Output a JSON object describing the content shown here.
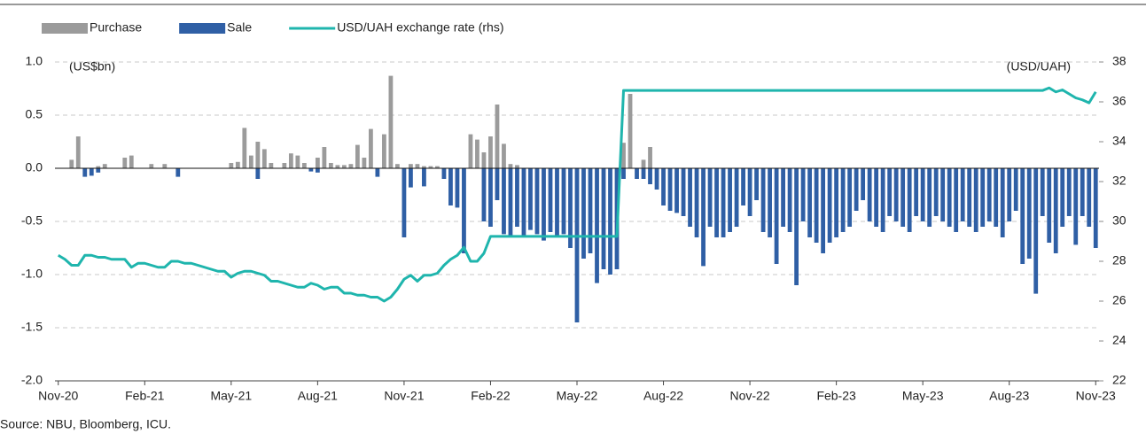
{
  "chart_data": {
    "type": "bar",
    "source": "Source: NBU, Bloomberg, ICU.",
    "y_label": "(US$bn)",
    "y2_label": "(USD/UAH)",
    "categories": [
      "Nov-20",
      null,
      null,
      null,
      null,
      null,
      null,
      null,
      null,
      null,
      null,
      null,
      null,
      "Feb-21",
      null,
      null,
      null,
      null,
      null,
      null,
      null,
      null,
      null,
      null,
      null,
      null,
      "May-21",
      null,
      null,
      null,
      null,
      null,
      null,
      null,
      null,
      null,
      null,
      null,
      null,
      "Aug-21",
      null,
      null,
      null,
      null,
      null,
      null,
      null,
      null,
      null,
      null,
      null,
      null,
      "Nov-21",
      null,
      null,
      null,
      null,
      null,
      null,
      null,
      null,
      null,
      null,
      null,
      null,
      "Feb-22",
      null,
      null,
      null,
      null,
      null,
      null,
      null,
      null,
      null,
      null,
      null,
      null,
      "May-22",
      null,
      null,
      null,
      null,
      null,
      null,
      null,
      null,
      null,
      null,
      null,
      null,
      "Aug-22",
      null,
      null,
      null,
      null,
      null,
      null,
      null,
      null,
      null,
      null,
      null,
      null,
      "Nov-22",
      null,
      null,
      null,
      null,
      null,
      null,
      null,
      null,
      null,
      null,
      null,
      null,
      "Feb-23",
      null,
      null,
      null,
      null,
      null,
      null,
      null,
      null,
      null,
      null,
      null,
      null,
      "May-23",
      null,
      null,
      null,
      null,
      null,
      null,
      null,
      null,
      null,
      null,
      null,
      null,
      "Aug-23",
      null,
      null,
      null,
      null,
      null,
      null,
      null,
      null,
      null,
      null,
      null,
      null,
      "Nov-23"
    ],
    "series": [
      {
        "name": "Purchase",
        "type": "bar",
        "color": "#9b9b9b",
        "values": [
          0,
          0,
          0.08,
          0.3,
          0,
          0,
          0.02,
          0.04,
          0,
          0,
          0.1,
          0.12,
          0,
          0,
          0.04,
          0,
          0.04,
          0,
          0,
          0,
          0,
          0,
          0,
          0,
          0,
          0,
          0.05,
          0.06,
          0.38,
          0.12,
          0.25,
          0.18,
          0.05,
          0,
          0.05,
          0.14,
          0.12,
          0.05,
          0,
          0.1,
          0.2,
          0.05,
          0.03,
          0.03,
          0.04,
          0.22,
          0.1,
          0.37,
          0,
          0.32,
          0.87,
          0.04,
          0,
          0.04,
          0.04,
          0.02,
          0.02,
          0.02,
          0,
          0,
          0,
          0,
          0.32,
          0.27,
          0.15,
          0.3,
          0.6,
          0.23,
          0.04,
          0.03,
          0,
          0,
          0,
          0,
          0,
          0,
          0,
          0,
          0,
          0,
          0,
          0,
          0,
          0,
          0,
          0.24,
          0.7,
          0,
          0.08,
          0.2,
          0,
          0,
          0,
          0,
          0,
          0,
          0,
          0,
          0,
          0,
          0,
          0,
          0,
          0,
          0,
          0,
          0,
          0,
          0,
          0,
          0,
          0,
          0,
          0,
          0,
          0,
          0,
          0,
          0,
          0,
          0,
          0,
          0,
          0,
          0,
          0,
          0,
          0,
          0,
          0,
          0,
          0,
          0,
          0,
          0,
          0,
          0,
          0,
          0,
          0,
          0,
          0,
          0,
          0,
          0,
          0,
          0,
          0,
          0,
          0,
          0,
          0,
          0,
          0,
          0,
          0,
          0
        ]
      },
      {
        "name": "Sale",
        "type": "bar",
        "color": "#2f5fa5",
        "values": [
          0,
          0,
          0,
          0,
          -0.08,
          -0.07,
          -0.04,
          0,
          0,
          0,
          0,
          0,
          0,
          0,
          0,
          0,
          0,
          0,
          -0.08,
          0,
          0,
          0,
          0,
          0,
          0,
          0,
          0,
          0,
          0,
          0,
          -0.1,
          0,
          0,
          0,
          0,
          0,
          0,
          0,
          -0.03,
          -0.04,
          0,
          0,
          0,
          0,
          0,
          0,
          0,
          0,
          -0.08,
          0,
          0,
          0,
          -0.65,
          -0.18,
          0,
          -0.17,
          0,
          0,
          -0.1,
          -0.35,
          -0.37,
          -0.8,
          0,
          0,
          -0.5,
          -0.55,
          -0.3,
          -0.62,
          -0.65,
          -0.55,
          -0.65,
          -0.58,
          -0.62,
          -0.68,
          -0.6,
          -0.65,
          -0.62,
          -0.75,
          -1.45,
          -0.85,
          -0.8,
          -1.08,
          -0.95,
          -1.0,
          -0.95,
          -0.1,
          0,
          -0.1,
          -0.1,
          -0.15,
          -0.2,
          -0.35,
          -0.4,
          -0.42,
          -0.45,
          -0.55,
          -0.65,
          -0.92,
          -0.55,
          -0.65,
          -0.65,
          -0.6,
          -0.55,
          -0.35,
          -0.45,
          -0.3,
          -0.6,
          -0.65,
          -0.9,
          -0.55,
          -0.6,
          -1.1,
          -0.5,
          -0.65,
          -0.7,
          -0.8,
          -0.7,
          -0.65,
          -0.6,
          -0.55,
          -0.4,
          -0.3,
          -0.5,
          -0.55,
          -0.6,
          -0.45,
          -0.5,
          -0.55,
          -0.6,
          -0.45,
          -0.5,
          -0.55,
          -0.45,
          -0.5,
          -0.55,
          -0.6,
          -0.5,
          -0.55,
          -0.6,
          -0.55,
          -0.5,
          -0.55,
          -0.65,
          -0.5,
          -0.4,
          -0.9,
          -0.85,
          -1.18,
          -0.45,
          -0.7,
          -0.8,
          -0.55,
          -0.45,
          -0.72,
          -0.45,
          -0.55,
          -0.75
        ]
      },
      {
        "name": "USD/UAH exchange rate (rhs)",
        "type": "line",
        "axis": "y2",
        "color": "#1fb5ad",
        "values": [
          28.3,
          28.1,
          27.8,
          27.8,
          28.3,
          28.3,
          28.2,
          28.2,
          28.1,
          28.1,
          28.1,
          27.7,
          27.9,
          27.9,
          27.8,
          27.7,
          27.7,
          28.0,
          28.0,
          27.9,
          27.9,
          27.8,
          27.7,
          27.6,
          27.5,
          27.5,
          27.2,
          27.4,
          27.5,
          27.5,
          27.4,
          27.3,
          27.0,
          27.0,
          26.9,
          26.8,
          26.7,
          26.7,
          26.9,
          26.8,
          26.6,
          26.7,
          26.7,
          26.4,
          26.4,
          26.3,
          26.3,
          26.2,
          26.2,
          26.0,
          26.2,
          26.6,
          27.1,
          27.3,
          27.0,
          27.3,
          27.3,
          27.4,
          27.8,
          28.1,
          28.3,
          28.7,
          28.0,
          28.0,
          28.4,
          29.25,
          29.25,
          29.25,
          29.25,
          29.25,
          29.25,
          29.25,
          29.25,
          29.25,
          29.25,
          29.25,
          29.25,
          29.25,
          29.25,
          29.25,
          29.25,
          29.25,
          29.25,
          29.25,
          29.25,
          36.57,
          36.57,
          36.57,
          36.57,
          36.57,
          36.57,
          36.57,
          36.57,
          36.57,
          36.57,
          36.57,
          36.57,
          36.57,
          36.57,
          36.57,
          36.57,
          36.57,
          36.57,
          36.57,
          36.57,
          36.57,
          36.57,
          36.57,
          36.57,
          36.57,
          36.57,
          36.57,
          36.57,
          36.57,
          36.57,
          36.57,
          36.57,
          36.57,
          36.57,
          36.57,
          36.57,
          36.57,
          36.57,
          36.57,
          36.57,
          36.57,
          36.57,
          36.57,
          36.57,
          36.57,
          36.57,
          36.57,
          36.57,
          36.57,
          36.57,
          36.57,
          36.57,
          36.57,
          36.57,
          36.57,
          36.57,
          36.57,
          36.57,
          36.57,
          36.57,
          36.57,
          36.57,
          36.57,
          36.57,
          36.7,
          36.5,
          36.6,
          36.4,
          36.2,
          36.1,
          35.95,
          36.5
        ]
      }
    ],
    "ylim": [
      -2,
      1
    ],
    "yticks": [
      {
        "value": 1,
        "label": "1.0"
      },
      0.5,
      {
        "value": 0,
        "label": "0.0"
      },
      -0.5,
      {
        "value": -1,
        "label": "-1.0"
      },
      -1.5,
      {
        "value": -2,
        "label": "-2.0"
      }
    ],
    "y2lim": [
      22,
      38
    ],
    "y2ticks": [
      22,
      24,
      26,
      28,
      30,
      32,
      34,
      36,
      38
    ],
    "grid": true,
    "legend": "top"
  }
}
